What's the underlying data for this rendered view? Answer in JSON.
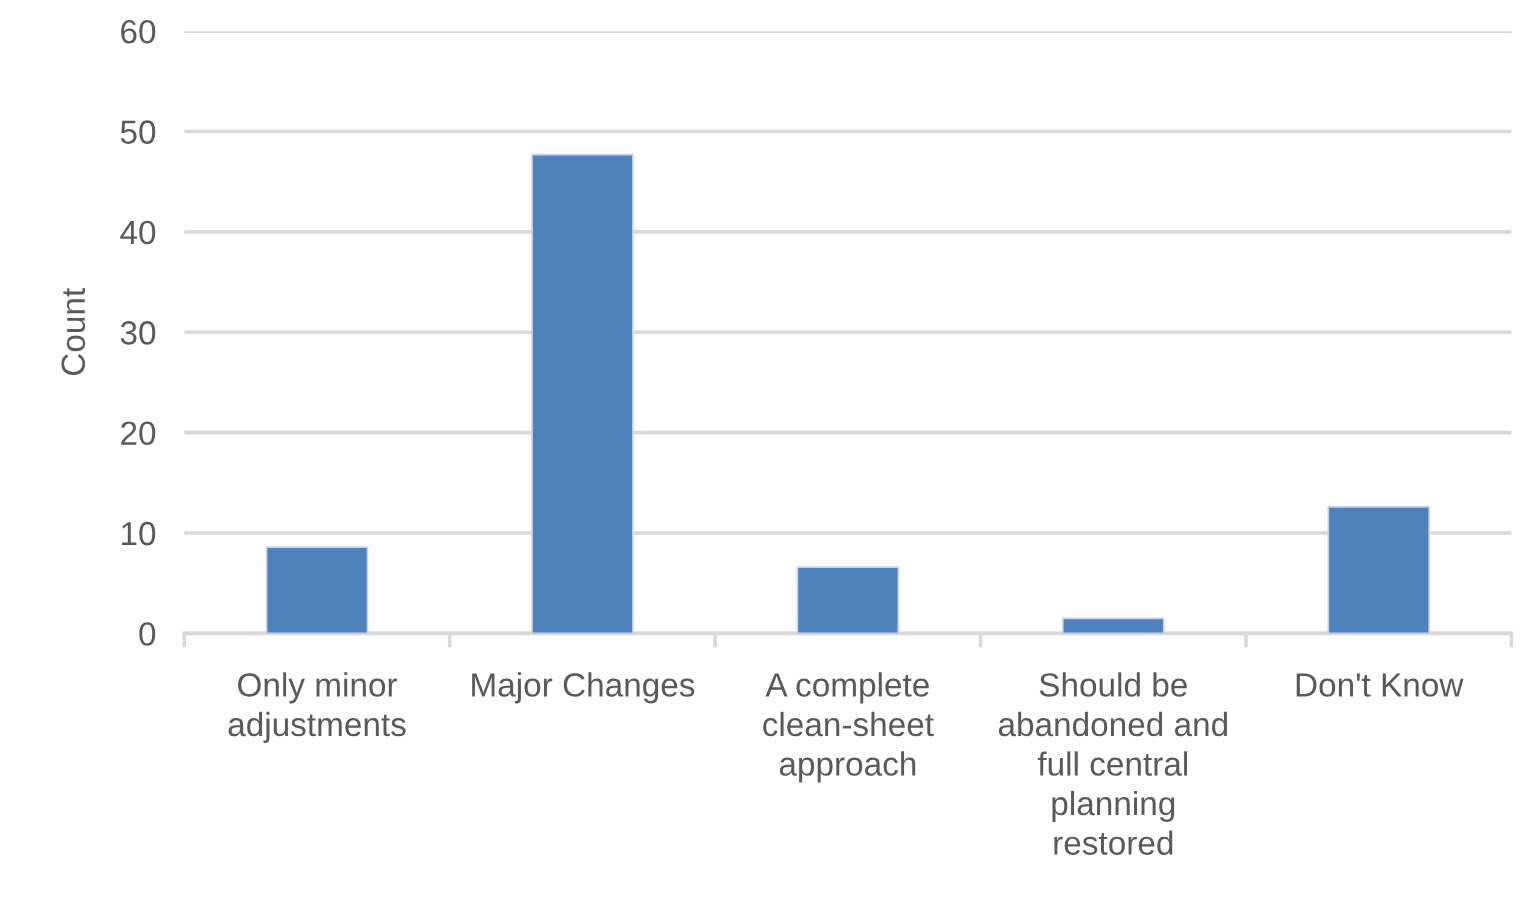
{
  "chart_data": {
    "type": "bar",
    "categories": [
      "Only minor adjustments",
      "Major Changes",
      "A complete clean-sheet approach",
      "Should be abandoned and full central planning restored",
      "Don't Know"
    ],
    "values": [
      8.6,
      47.7,
      6.6,
      1.5,
      12.6
    ],
    "color": "#4f81bd",
    "ylabel": "Count",
    "ylim": [
      0,
      60
    ],
    "yticks": [
      0,
      10,
      20,
      30,
      40,
      50,
      60
    ],
    "grid": "y",
    "legend": false
  }
}
